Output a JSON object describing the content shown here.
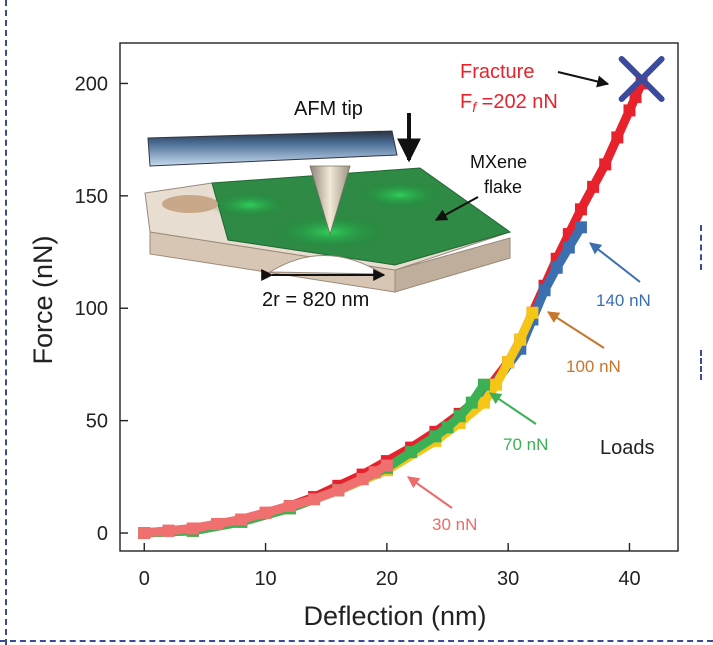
{
  "chart_data": {
    "type": "scatter",
    "xlabel": "Deflection (nm)",
    "ylabel": "Force (nN)",
    "xlim": [
      -2,
      44
    ],
    "ylim": [
      -8,
      218
    ],
    "xticks": [
      0,
      10,
      20,
      30,
      40
    ],
    "yticks": [
      0,
      50,
      100,
      150,
      200
    ],
    "grid": false,
    "legend": "none",
    "series": [
      {
        "color": "#e8222c",
        "x": [
          0,
          2,
          4,
          6,
          8,
          10,
          12,
          14,
          16,
          18,
          20,
          22,
          24,
          26,
          28,
          30,
          31,
          32,
          33,
          34,
          35,
          36,
          37,
          38,
          39,
          40,
          40.5,
          41
        ],
        "y": [
          0,
          1,
          2,
          4,
          6,
          9,
          12,
          16,
          21,
          26,
          32,
          38,
          45,
          53,
          62,
          76,
          86,
          98,
          110,
          122,
          133,
          144,
          154,
          164,
          176,
          188,
          194,
          200
        ]
      },
      {
        "color": "#3b6fb0",
        "x": [
          0,
          4,
          8,
          12,
          16,
          20,
          24,
          28,
          31,
          32,
          33,
          34,
          35,
          36
        ],
        "y": [
          0,
          1,
          5,
          11,
          19,
          28,
          43,
          60,
          82,
          95,
          108,
          118,
          127,
          136
        ]
      },
      {
        "color": "#f5c518",
        "x": [
          0,
          4,
          8,
          12,
          16,
          20,
          24,
          26,
          28,
          29,
          30,
          31,
          32
        ],
        "y": [
          0,
          1,
          5,
          11,
          19,
          28,
          41,
          49,
          58,
          66,
          76,
          86,
          98
        ]
      },
      {
        "color": "#3cb054",
        "x": [
          0,
          4,
          8,
          12,
          16,
          18,
          20,
          22,
          24,
          25,
          26,
          27,
          28
        ],
        "y": [
          0,
          1,
          5,
          11,
          19,
          24,
          29,
          36,
          43,
          47,
          52,
          58,
          66
        ]
      },
      {
        "color": "#f07070",
        "x": [
          0,
          2,
          4,
          6,
          8,
          10,
          12,
          14,
          16,
          18,
          19,
          20
        ],
        "y": [
          0,
          1,
          2,
          4,
          6,
          9,
          12,
          15,
          19,
          24,
          27,
          30
        ]
      }
    ],
    "fracture_point": {
      "x": 41,
      "y": 202,
      "color": "#3b4a9a"
    },
    "annotations": {
      "fracture_label": "Fracture",
      "fracture_value": "F",
      "fracture_sub": "f",
      "fracture_rest": " =202 nN",
      "loads_title": "Loads",
      "load_140": "140 nN",
      "load_100": "100 nN",
      "load_70": "70 nN",
      "load_30": "30 nN"
    },
    "colors": {
      "fracture_text": "#e8222c",
      "load_140": "#3b6fb0",
      "load_100": "#c8762a",
      "load_70": "#3cb054",
      "load_30": "#ef6a6a"
    },
    "inset": {
      "tip_label": "AFM tip",
      "flake_label": "MXene",
      "flake_label2": "flake",
      "radius_label": "2r = 820 nm"
    }
  }
}
